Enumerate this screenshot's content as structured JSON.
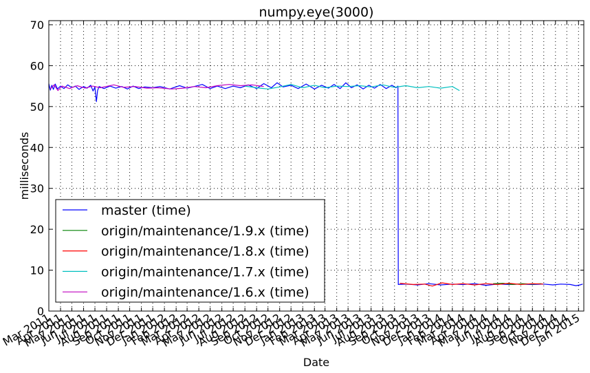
{
  "chart_data": {
    "type": "line",
    "title": "numpy.eye(3000)",
    "xlabel": "Date",
    "ylabel": "milliseconds",
    "ylim": [
      0,
      71
    ],
    "xlim": [
      "2011-03-01",
      "2015-01-15"
    ],
    "grid": true,
    "legend_position": "bottom-left",
    "y_ticks": [
      "0",
      "10",
      "20",
      "30",
      "40",
      "50",
      "60",
      "70"
    ],
    "x_ticks": [
      {
        "date": "2011-03-01",
        "label": "Mar 2011"
      },
      {
        "date": "2011-04-01",
        "label": "Apr 2011"
      },
      {
        "date": "2011-05-01",
        "label": "May 2011"
      },
      {
        "date": "2011-06-01",
        "label": "Jun 2011"
      },
      {
        "date": "2011-07-01",
        "label": "Jul 2011"
      },
      {
        "date": "2011-08-01",
        "label": "Aug 2011"
      },
      {
        "date": "2011-09-01",
        "label": "Sep 2011"
      },
      {
        "date": "2011-10-01",
        "label": "Oct 2011"
      },
      {
        "date": "2011-11-01",
        "label": "Nov 2011"
      },
      {
        "date": "2011-12-01",
        "label": "Dec 2011"
      },
      {
        "date": "2012-01-01",
        "label": "Jan 2012"
      },
      {
        "date": "2012-02-01",
        "label": "Feb 2012"
      },
      {
        "date": "2012-03-01",
        "label": "Mar 2012"
      },
      {
        "date": "2012-04-01",
        "label": "Apr 2012"
      },
      {
        "date": "2012-05-01",
        "label": "May 2012"
      },
      {
        "date": "2012-06-01",
        "label": "Jun 2012"
      },
      {
        "date": "2012-07-01",
        "label": "Jul 2012"
      },
      {
        "date": "2012-08-01",
        "label": "Aug 2012"
      },
      {
        "date": "2012-09-01",
        "label": "Sep 2012"
      },
      {
        "date": "2012-10-01",
        "label": "Oct 2012"
      },
      {
        "date": "2012-11-01",
        "label": "Nov 2012"
      },
      {
        "date": "2012-12-01",
        "label": "Dec 2012"
      },
      {
        "date": "2013-01-01",
        "label": "Jan 2013"
      },
      {
        "date": "2013-02-01",
        "label": "Feb 2013"
      },
      {
        "date": "2013-03-01",
        "label": "Mar 2013"
      },
      {
        "date": "2013-04-01",
        "label": "Apr 2013"
      },
      {
        "date": "2013-05-01",
        "label": "May 2013"
      },
      {
        "date": "2013-06-01",
        "label": "Jun 2013"
      },
      {
        "date": "2013-07-01",
        "label": "Jul 2013"
      },
      {
        "date": "2013-08-01",
        "label": "Aug 2013"
      },
      {
        "date": "2013-09-01",
        "label": "Sep 2013"
      },
      {
        "date": "2013-10-01",
        "label": "Oct 2013"
      },
      {
        "date": "2013-11-01",
        "label": "Nov 2013"
      },
      {
        "date": "2013-12-01",
        "label": "Dec 2013"
      },
      {
        "date": "2014-01-01",
        "label": "Jan 2014"
      },
      {
        "date": "2014-02-01",
        "label": "Feb 2014"
      },
      {
        "date": "2014-03-01",
        "label": "Mar 2014"
      },
      {
        "date": "2014-04-01",
        "label": "Apr 2014"
      },
      {
        "date": "2014-05-01",
        "label": "May 2014"
      },
      {
        "date": "2014-06-01",
        "label": "Jun 2014"
      },
      {
        "date": "2014-07-01",
        "label": "Jul 2014"
      },
      {
        "date": "2014-08-01",
        "label": "Aug 2014"
      },
      {
        "date": "2014-09-01",
        "label": "Sep 2014"
      },
      {
        "date": "2014-10-01",
        "label": "Oct 2014"
      },
      {
        "date": "2014-11-01",
        "label": "Nov 2014"
      },
      {
        "date": "2014-12-01",
        "label": "Dec 2014"
      },
      {
        "date": "2015-01-01",
        "label": "Jan 2015"
      }
    ],
    "series": [
      {
        "name": "master (time)",
        "color": "#0000ff",
        "points": [
          [
            "2011-03-01",
            55.6
          ],
          [
            "2011-03-05",
            54.0
          ],
          [
            "2011-03-09",
            55.2
          ],
          [
            "2011-03-13",
            54.2
          ],
          [
            "2011-03-18",
            55.5
          ],
          [
            "2011-03-24",
            54.3
          ],
          [
            "2011-04-01",
            55.0
          ],
          [
            "2011-04-10",
            54.4
          ],
          [
            "2011-04-20",
            55.3
          ],
          [
            "2011-05-01",
            54.6
          ],
          [
            "2011-05-10",
            55.0
          ],
          [
            "2011-05-20",
            54.2
          ],
          [
            "2011-06-01",
            54.9
          ],
          [
            "2011-06-10",
            54.5
          ],
          [
            "2011-06-20",
            55.2
          ],
          [
            "2011-06-26",
            53.8
          ],
          [
            "2011-07-01",
            54.8
          ],
          [
            "2011-07-05",
            51.2
          ],
          [
            "2011-07-08",
            53.9
          ],
          [
            "2011-07-12",
            54.9
          ],
          [
            "2011-07-25",
            54.4
          ],
          [
            "2011-08-10",
            55.0
          ],
          [
            "2011-08-25",
            54.5
          ],
          [
            "2011-09-10",
            54.9
          ],
          [
            "2011-09-25",
            54.3
          ],
          [
            "2011-10-10",
            55.0
          ],
          [
            "2011-10-25",
            54.4
          ],
          [
            "2011-11-10",
            54.8
          ],
          [
            "2011-12-01",
            54.6
          ],
          [
            "2011-12-20",
            54.9
          ],
          [
            "2012-01-15",
            54.3
          ],
          [
            "2012-02-10",
            55.1
          ],
          [
            "2012-03-01",
            54.5
          ],
          [
            "2012-03-20",
            54.9
          ],
          [
            "2012-04-10",
            55.4
          ],
          [
            "2012-05-01",
            54.4
          ],
          [
            "2012-05-20",
            55.0
          ],
          [
            "2012-06-10",
            54.4
          ],
          [
            "2012-07-01",
            55.0
          ],
          [
            "2012-07-20",
            54.6
          ],
          [
            "2012-08-10",
            55.3
          ],
          [
            "2012-09-01",
            54.4
          ],
          [
            "2012-09-20",
            55.6
          ],
          [
            "2012-10-10",
            54.6
          ],
          [
            "2012-10-25",
            55.8
          ],
          [
            "2012-11-10",
            54.8
          ],
          [
            "2012-12-01",
            55.2
          ],
          [
            "2012-12-20",
            54.4
          ],
          [
            "2013-01-10",
            55.5
          ],
          [
            "2013-02-01",
            54.3
          ],
          [
            "2013-02-20",
            55.2
          ],
          [
            "2013-03-10",
            54.5
          ],
          [
            "2013-03-25",
            55.4
          ],
          [
            "2013-04-10",
            54.4
          ],
          [
            "2013-04-25",
            55.8
          ],
          [
            "2013-05-10",
            54.6
          ],
          [
            "2013-05-25",
            55.3
          ],
          [
            "2013-06-10",
            54.3
          ],
          [
            "2013-06-25",
            55.2
          ],
          [
            "2013-07-10",
            54.5
          ],
          [
            "2013-07-25",
            55.4
          ],
          [
            "2013-08-10",
            54.4
          ],
          [
            "2013-08-25",
            55.2
          ],
          [
            "2013-09-05",
            54.6
          ],
          [
            "2013-09-10",
            55.0
          ],
          [
            "2013-09-11",
            6.5
          ],
          [
            "2013-10-01",
            6.6
          ],
          [
            "2013-11-01",
            6.4
          ],
          [
            "2013-12-01",
            6.7
          ],
          [
            "2014-01-01",
            6.4
          ],
          [
            "2014-02-01",
            6.6
          ],
          [
            "2014-03-01",
            6.5
          ],
          [
            "2014-04-01",
            6.7
          ],
          [
            "2014-05-01",
            6.3
          ],
          [
            "2014-06-01",
            6.6
          ],
          [
            "2014-07-01",
            6.5
          ],
          [
            "2014-08-01",
            6.6
          ],
          [
            "2014-09-01",
            6.5
          ],
          [
            "2014-10-01",
            6.6
          ],
          [
            "2014-10-25",
            6.4
          ],
          [
            "2014-11-15",
            6.6
          ],
          [
            "2014-12-10",
            6.5
          ],
          [
            "2014-12-25",
            6.2
          ],
          [
            "2015-01-05",
            6.4
          ],
          [
            "2015-01-12",
            6.6
          ]
        ]
      },
      {
        "name": "origin/maintenance/1.9.x (time)",
        "color": "#008000",
        "points": [
          [
            "2014-05-20",
            6.7
          ],
          [
            "2014-06-15",
            6.8
          ],
          [
            "2014-07-10",
            6.5
          ],
          [
            "2014-08-05",
            6.7
          ],
          [
            "2014-09-01",
            6.6
          ],
          [
            "2014-09-25",
            6.7
          ]
        ]
      },
      {
        "name": "origin/maintenance/1.8.x (time)",
        "color": "#ff0000",
        "points": [
          [
            "2013-09-15",
            6.8
          ],
          [
            "2013-10-20",
            6.5
          ],
          [
            "2013-11-20",
            6.6
          ],
          [
            "2013-12-10",
            6.1
          ],
          [
            "2014-01-05",
            6.9
          ],
          [
            "2014-02-01",
            6.5
          ],
          [
            "2014-03-01",
            6.7
          ],
          [
            "2014-04-01",
            6.4
          ],
          [
            "2014-05-01",
            6.7
          ],
          [
            "2014-06-01",
            6.5
          ],
          [
            "2014-07-01",
            6.8
          ],
          [
            "2014-08-01",
            6.5
          ],
          [
            "2014-09-01",
            6.7
          ],
          [
            "2014-09-30",
            6.6
          ]
        ]
      },
      {
        "name": "origin/maintenance/1.7.x (time)",
        "color": "#00bfbf",
        "points": [
          [
            "2012-08-01",
            55.0
          ],
          [
            "2012-09-01",
            54.6
          ],
          [
            "2012-10-01",
            54.3
          ],
          [
            "2012-11-01",
            54.8
          ],
          [
            "2012-12-01",
            55.4
          ],
          [
            "2013-01-01",
            54.6
          ],
          [
            "2013-02-01",
            55.2
          ],
          [
            "2013-03-01",
            54.6
          ],
          [
            "2013-04-01",
            55.0
          ],
          [
            "2013-05-01",
            54.9
          ],
          [
            "2013-06-01",
            55.1
          ],
          [
            "2013-07-01",
            54.8
          ],
          [
            "2013-08-01",
            55.3
          ],
          [
            "2013-09-01",
            54.7
          ],
          [
            "2013-10-01",
            55.1
          ],
          [
            "2013-11-01",
            54.6
          ],
          [
            "2013-12-01",
            54.9
          ],
          [
            "2014-01-01",
            54.5
          ],
          [
            "2014-02-01",
            54.9
          ],
          [
            "2014-02-20",
            53.9
          ]
        ]
      },
      {
        "name": "origin/maintenance/1.6.x (time)",
        "color": "#bf00bf",
        "points": [
          [
            "2011-03-05",
            54.3
          ],
          [
            "2011-03-15",
            55.3
          ],
          [
            "2011-03-25",
            53.9
          ],
          [
            "2011-04-05",
            55.0
          ],
          [
            "2011-04-25",
            54.4
          ],
          [
            "2011-05-15",
            55.1
          ],
          [
            "2011-06-05",
            54.5
          ],
          [
            "2011-06-25",
            55.0
          ],
          [
            "2011-07-15",
            54.6
          ],
          [
            "2011-08-20",
            55.3
          ],
          [
            "2011-09-15",
            54.7
          ],
          [
            "2011-10-15",
            54.9
          ],
          [
            "2011-11-15",
            54.5
          ],
          [
            "2011-12-15",
            54.6
          ],
          [
            "2012-01-20",
            54.3
          ],
          [
            "2012-02-20",
            54.5
          ],
          [
            "2012-03-20",
            54.9
          ],
          [
            "2012-04-20",
            54.6
          ],
          [
            "2012-05-20",
            55.1
          ],
          [
            "2012-06-20",
            55.4
          ],
          [
            "2012-07-20",
            55.1
          ],
          [
            "2012-08-20",
            55.3
          ],
          [
            "2012-09-20",
            54.9
          ]
        ]
      }
    ]
  }
}
